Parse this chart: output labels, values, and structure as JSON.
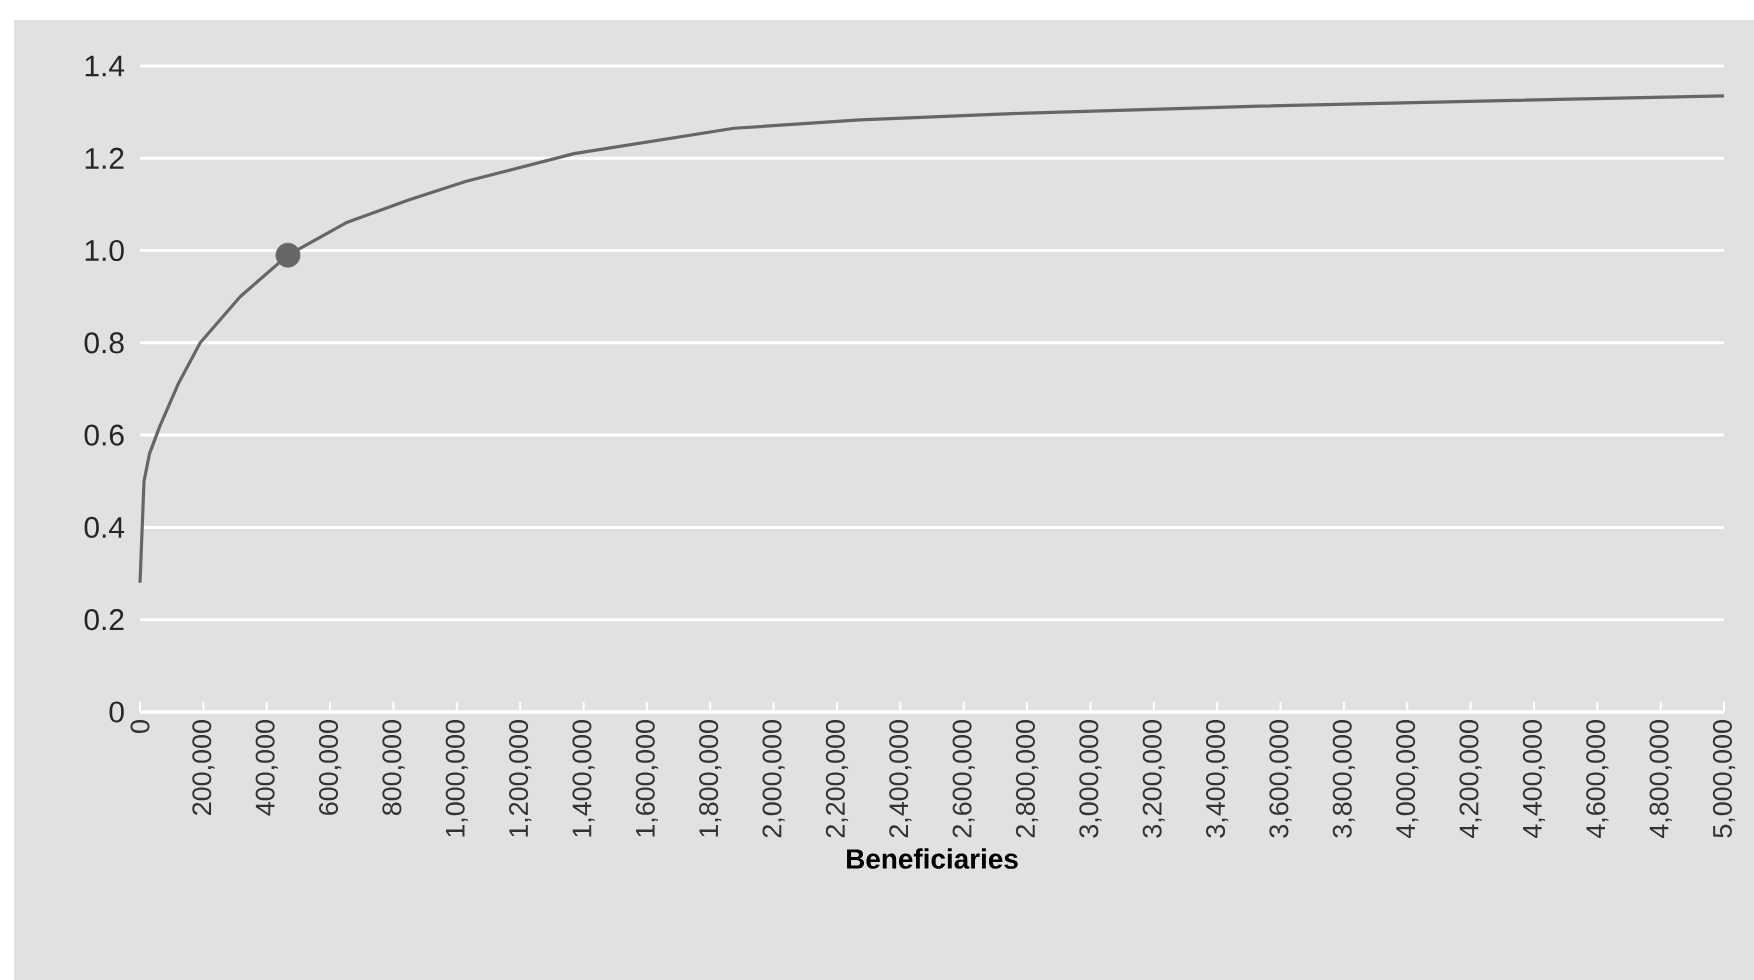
{
  "chart_data": {
    "type": "line",
    "xlabel": "Beneficiaries",
    "series": [
      {
        "color": "#666666",
        "x": [
          0,
          12600,
          30000,
          63000,
          120000,
          190000,
          316000,
          467000,
          650000,
          850000,
          1030000,
          1370000,
          1875000,
          2273000,
          2800000,
          3535000,
          4300000,
          5000000
        ],
        "values": [
          0.28,
          0.5,
          0.56,
          0.62,
          0.71,
          0.8,
          0.9,
          0.99,
          1.06,
          1.11,
          1.15,
          1.21,
          1.265,
          1.283,
          1.298,
          1.313,
          1.325,
          1.335
        ]
      },
      {
        "type": "scatter",
        "color": "#666666",
        "x": [
          467000
        ],
        "values": [
          0.99
        ]
      }
    ],
    "xlim": [
      0,
      5000000
    ],
    "xticks": [
      0,
      {
        "value": 200000,
        "label": "200,000"
      },
      {
        "value": 400000,
        "label": "400,000"
      },
      {
        "value": 600000,
        "label": "600,000"
      },
      {
        "value": 800000,
        "label": "800,000"
      },
      {
        "value": 1000000,
        "label": "1,000,000"
      },
      {
        "value": 1200000,
        "label": "1,200,000"
      },
      {
        "value": 1400000,
        "label": "1,400,000"
      },
      {
        "value": 1600000,
        "label": "1,600,000"
      },
      {
        "value": 1800000,
        "label": "1,800,000"
      },
      {
        "value": 2000000,
        "label": "2,000,000"
      },
      {
        "value": 2200000,
        "label": "2,200,000"
      },
      {
        "value": 2400000,
        "label": "2,400,000"
      },
      {
        "value": 2600000,
        "label": "2,600,000"
      },
      {
        "value": 2800000,
        "label": "2,800,000"
      },
      {
        "value": 3000000,
        "label": "3,000,000"
      },
      {
        "value": 3200000,
        "label": "3,200,000"
      },
      {
        "value": 3400000,
        "label": "3,400,000"
      },
      {
        "value": 3600000,
        "label": "3,600,000"
      },
      {
        "value": 3800000,
        "label": "3,800,000"
      },
      {
        "value": 4000000,
        "label": "4,000,000"
      },
      {
        "value": 4200000,
        "label": "4,200,000"
      },
      {
        "value": 4400000,
        "label": "4,400,000"
      },
      {
        "value": 4600000,
        "label": "4,600,000"
      },
      {
        "value": 4800000,
        "label": "4,800,000"
      },
      {
        "value": 5000000,
        "label": "5,000,000"
      }
    ],
    "ylim": [
      0,
      1.4
    ],
    "yticks": [
      0,
      0.2,
      0.4,
      0.6,
      0.8,
      {
        "value": 1,
        "label": "1.0"
      },
      1.2,
      1.4
    ],
    "grid": "y",
    "line_style": "solid"
  }
}
